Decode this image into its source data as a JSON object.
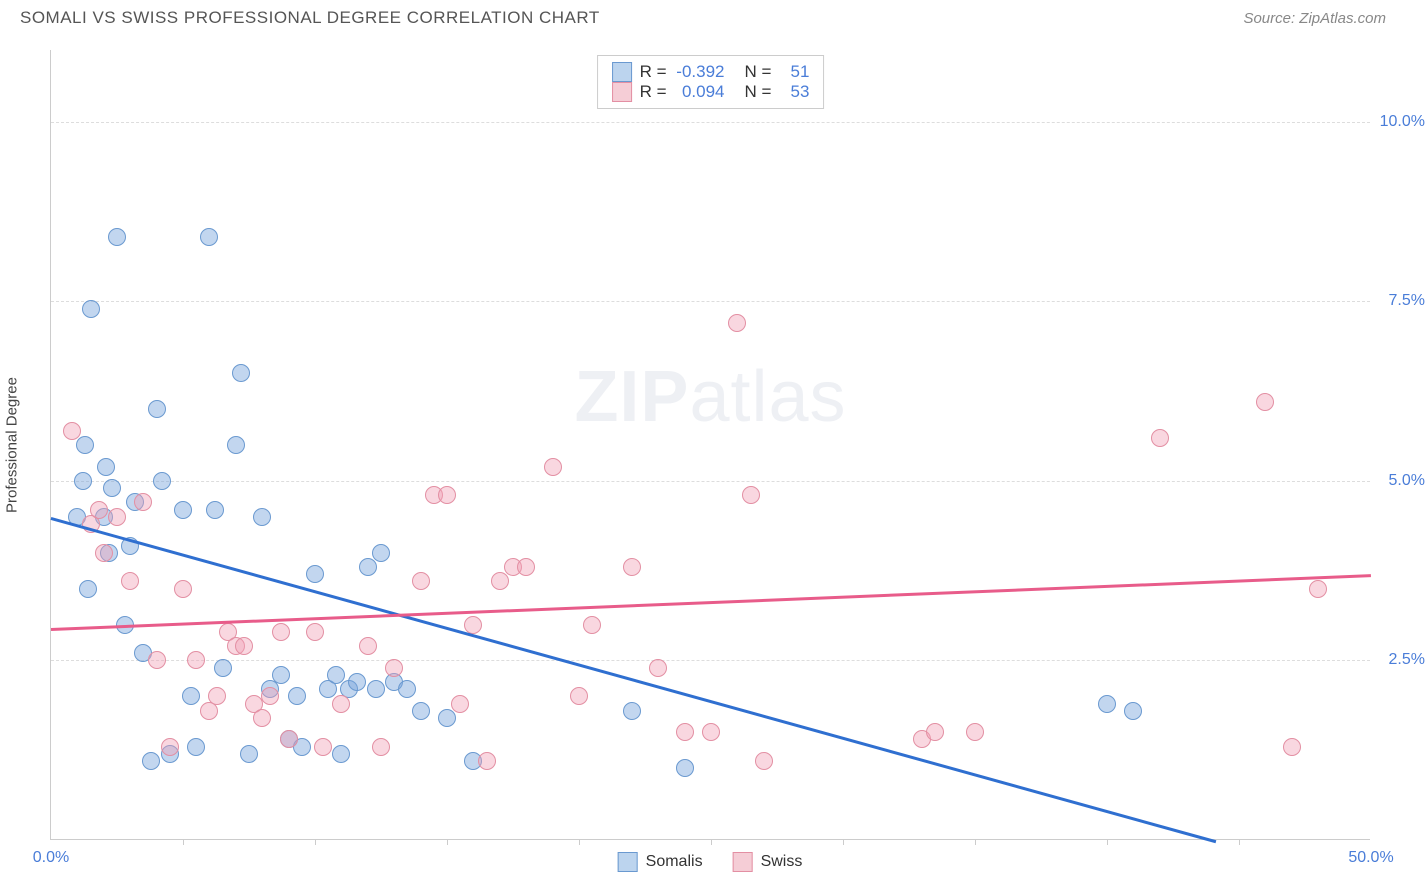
{
  "title": "SOMALI VS SWISS PROFESSIONAL DEGREE CORRELATION CHART",
  "source": "Source: ZipAtlas.com",
  "ylabel": "Professional Degree",
  "watermark_a": "ZIP",
  "watermark_b": "atlas",
  "chart": {
    "type": "scatter",
    "xlim": [
      0,
      50
    ],
    "ylim": [
      0,
      11
    ],
    "background_color": "#ffffff",
    "grid_color": "#dddddd",
    "grid_dash": "4,4",
    "yticks": [
      {
        "v": 2.5,
        "label": "2.5%"
      },
      {
        "v": 5.0,
        "label": "5.0%"
      },
      {
        "v": 7.5,
        "label": "7.5%"
      },
      {
        "v": 10.0,
        "label": "10.0%"
      }
    ],
    "xticks_labeled": [
      {
        "v": 0,
        "label": "0.0%"
      },
      {
        "v": 50,
        "label": "50.0%"
      }
    ],
    "xticks_minor": [
      5,
      10,
      15,
      20,
      25,
      30,
      35,
      40,
      45
    ],
    "marker_radius": 9,
    "series": [
      {
        "name": "Somalis",
        "fill_color": "rgba(120,165,220,0.45)",
        "stroke_color": "#6a99d0",
        "swatch_fill": "#bcd4ee",
        "swatch_border": "#6a99d0",
        "trend_color": "#2f6fd0",
        "trend_y_at_x0": 4.5,
        "trend_y_at_xmax": -0.6,
        "R": "-0.392",
        "N": "51",
        "points": [
          [
            1.0,
            4.5
          ],
          [
            1.2,
            5.0
          ],
          [
            1.3,
            5.5
          ],
          [
            1.4,
            3.5
          ],
          [
            1.5,
            7.4
          ],
          [
            2.0,
            4.5
          ],
          [
            2.1,
            5.2
          ],
          [
            2.2,
            4.0
          ],
          [
            2.3,
            4.9
          ],
          [
            2.5,
            8.4
          ],
          [
            2.8,
            3.0
          ],
          [
            3.0,
            4.1
          ],
          [
            3.2,
            4.7
          ],
          [
            3.5,
            2.6
          ],
          [
            3.8,
            1.1
          ],
          [
            4.0,
            6.0
          ],
          [
            4.2,
            5.0
          ],
          [
            4.5,
            1.2
          ],
          [
            5.0,
            4.6
          ],
          [
            5.3,
            2.0
          ],
          [
            5.5,
            1.3
          ],
          [
            6.0,
            8.4
          ],
          [
            6.2,
            4.6
          ],
          [
            6.5,
            2.4
          ],
          [
            7.0,
            5.5
          ],
          [
            7.2,
            6.5
          ],
          [
            7.5,
            1.2
          ],
          [
            8.0,
            4.5
          ],
          [
            8.3,
            2.1
          ],
          [
            8.7,
            2.3
          ],
          [
            9.0,
            1.4
          ],
          [
            9.3,
            2.0
          ],
          [
            9.5,
            1.3
          ],
          [
            10.0,
            3.7
          ],
          [
            10.5,
            2.1
          ],
          [
            10.8,
            2.3
          ],
          [
            11.0,
            1.2
          ],
          [
            11.3,
            2.1
          ],
          [
            11.6,
            2.2
          ],
          [
            12.0,
            3.8
          ],
          [
            12.3,
            2.1
          ],
          [
            12.5,
            4.0
          ],
          [
            13.0,
            2.2
          ],
          [
            13.5,
            2.1
          ],
          [
            14.0,
            1.8
          ],
          [
            15.0,
            1.7
          ],
          [
            16.0,
            1.1
          ],
          [
            22.0,
            1.8
          ],
          [
            24.0,
            1.0
          ],
          [
            40.0,
            1.9
          ],
          [
            41.0,
            1.8
          ]
        ]
      },
      {
        "name": "Swiss",
        "fill_color": "rgba(240,160,180,0.42)",
        "stroke_color": "#e38fa3",
        "swatch_fill": "#f5cdd6",
        "swatch_border": "#e38fa3",
        "trend_color": "#e85c8a",
        "trend_y_at_x0": 2.95,
        "trend_y_at_xmax": 3.7,
        "R": "0.094",
        "N": "53",
        "points": [
          [
            0.8,
            5.7
          ],
          [
            1.5,
            4.4
          ],
          [
            1.8,
            4.6
          ],
          [
            2.0,
            4.0
          ],
          [
            2.5,
            4.5
          ],
          [
            3.0,
            3.6
          ],
          [
            3.5,
            4.7
          ],
          [
            4.0,
            2.5
          ],
          [
            4.5,
            1.3
          ],
          [
            5.0,
            3.5
          ],
          [
            5.5,
            2.5
          ],
          [
            6.0,
            1.8
          ],
          [
            6.3,
            2.0
          ],
          [
            6.7,
            2.9
          ],
          [
            7.0,
            2.7
          ],
          [
            7.3,
            2.7
          ],
          [
            7.7,
            1.9
          ],
          [
            8.0,
            1.7
          ],
          [
            8.3,
            2.0
          ],
          [
            8.7,
            2.9
          ],
          [
            9.0,
            1.4
          ],
          [
            10.0,
            2.9
          ],
          [
            10.3,
            1.3
          ],
          [
            11.0,
            1.9
          ],
          [
            12.0,
            2.7
          ],
          [
            12.5,
            1.3
          ],
          [
            13.0,
            2.4
          ],
          [
            14.0,
            3.6
          ],
          [
            14.5,
            4.8
          ],
          [
            15.0,
            4.8
          ],
          [
            15.5,
            1.9
          ],
          [
            16.0,
            3.0
          ],
          [
            16.5,
            1.1
          ],
          [
            17.0,
            3.6
          ],
          [
            17.5,
            3.8
          ],
          [
            18.0,
            3.8
          ],
          [
            19.0,
            5.2
          ],
          [
            20.0,
            2.0
          ],
          [
            20.5,
            3.0
          ],
          [
            22.0,
            3.8
          ],
          [
            23.0,
            2.4
          ],
          [
            24.0,
            1.5
          ],
          [
            25.0,
            1.5
          ],
          [
            26.0,
            7.2
          ],
          [
            26.5,
            4.8
          ],
          [
            27.0,
            1.1
          ],
          [
            33.0,
            1.4
          ],
          [
            33.5,
            1.5
          ],
          [
            35.0,
            1.5
          ],
          [
            42.0,
            5.6
          ],
          [
            46.0,
            6.1
          ],
          [
            47.0,
            1.3
          ],
          [
            48.0,
            3.5
          ]
        ]
      }
    ],
    "legend_bottom": [
      {
        "label": "Somalis",
        "fill": "#bcd4ee",
        "border": "#6a99d0"
      },
      {
        "label": "Swiss",
        "fill": "#f5cdd6",
        "border": "#e38fa3"
      }
    ]
  }
}
